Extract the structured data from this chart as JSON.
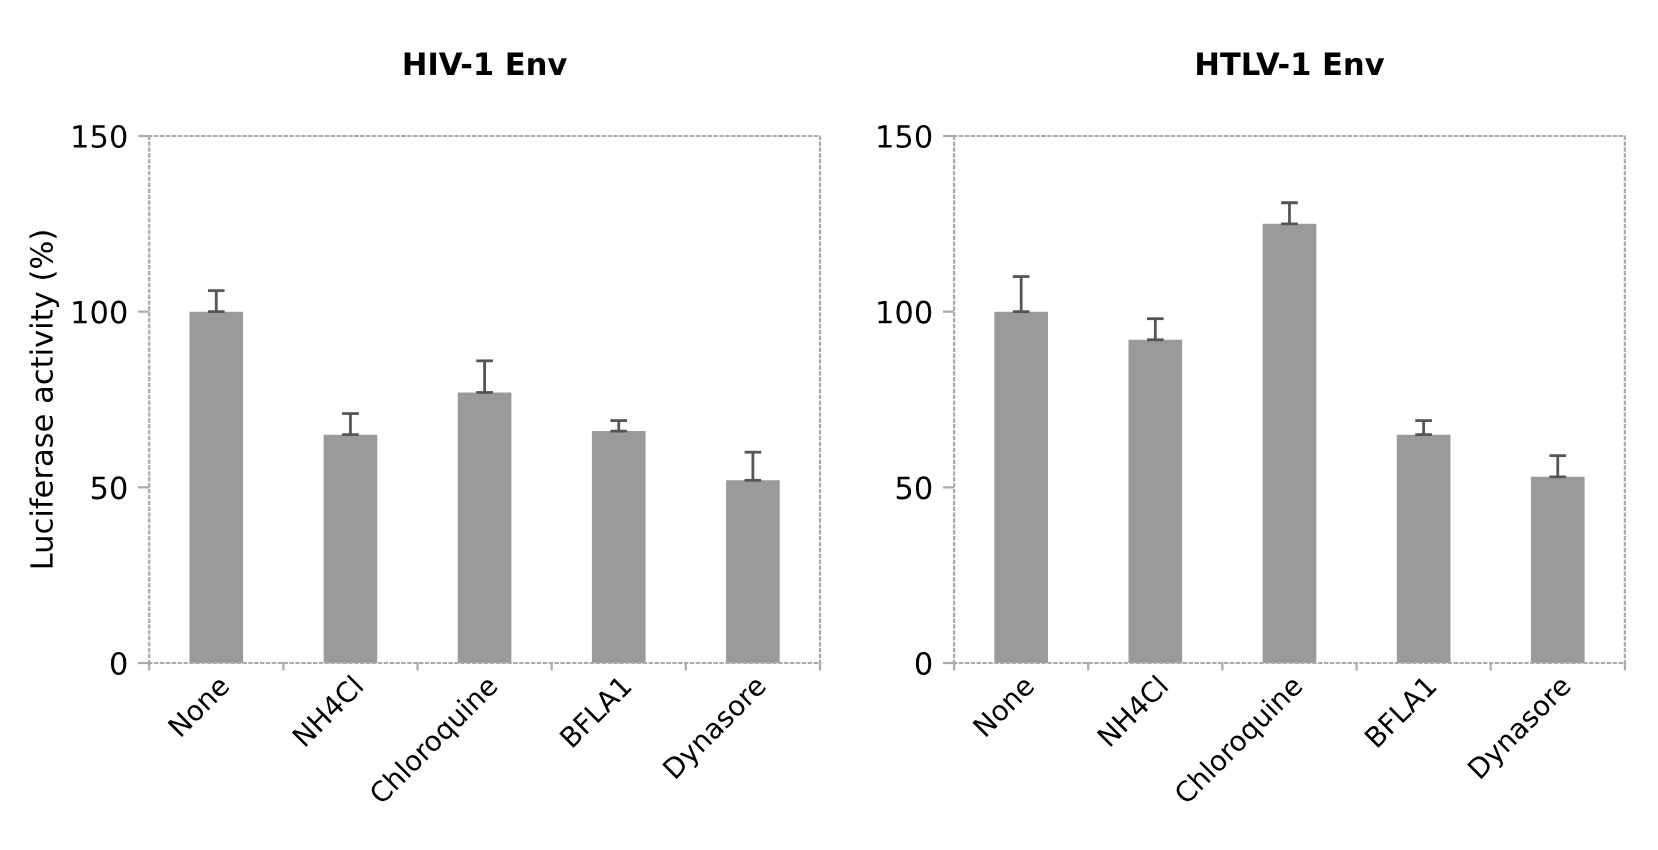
{
  "chart_data": [
    {
      "type": "bar",
      "title": "HIV-1 Env",
      "ylabel": "Luciferase activity (%)",
      "categories": [
        "None",
        "NH4Cl",
        "Chloroquine",
        "BFLA1",
        "Dynasore"
      ],
      "values": [
        100,
        65,
        77,
        66,
        52
      ],
      "errors": [
        [
          100,
          106
        ],
        [
          65,
          71
        ],
        [
          77,
          86
        ],
        [
          66,
          69
        ],
        [
          52,
          60
        ]
      ],
      "color": "#9a9a9a",
      "ylim": [
        0,
        150
      ],
      "yticks": [
        0,
        50,
        100,
        150
      ],
      "grid": false,
      "legend": false
    },
    {
      "type": "bar",
      "title": "HTLV-1 Env",
      "categories": [
        "None",
        "NH4Cl",
        "Chloroquine",
        "BFLA1",
        "Dynasore"
      ],
      "values": [
        100,
        92,
        125,
        65,
        53
      ],
      "errors": [
        [
          100,
          110
        ],
        [
          92,
          98
        ],
        [
          125,
          131
        ],
        [
          65,
          69
        ],
        [
          53,
          59
        ]
      ],
      "color": "#9a9a9a",
      "ylim": [
        0,
        150
      ],
      "yticks": [
        0,
        50,
        100,
        150
      ],
      "grid": false,
      "legend": false
    }
  ]
}
